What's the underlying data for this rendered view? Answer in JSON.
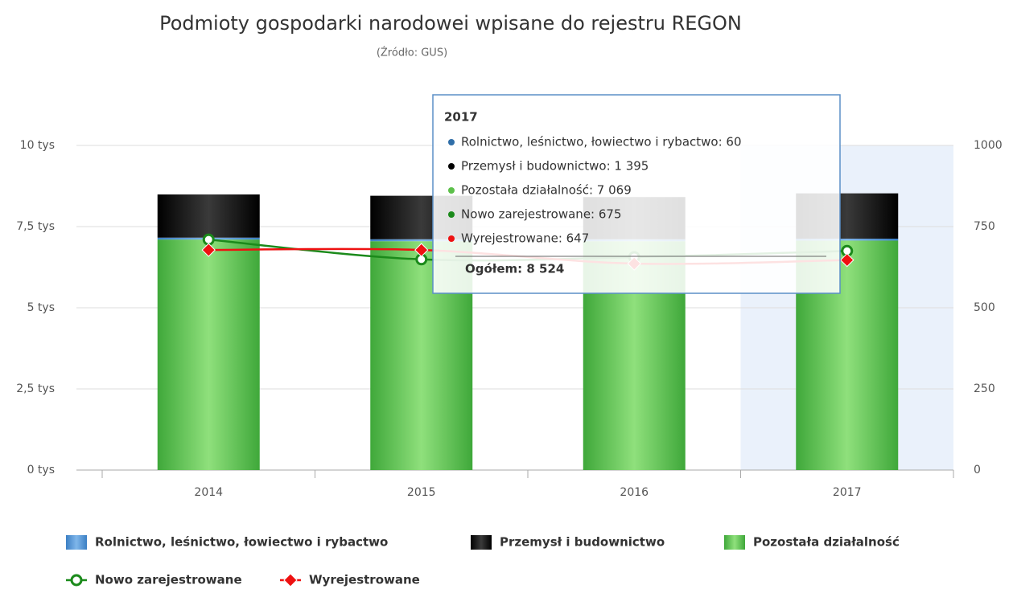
{
  "chart_data": {
    "type": "bar",
    "title": "Podmioty gospodarki narodowei wpisane do rejestru REGON",
    "subtitle": "(Źródło: GUS)",
    "categories": [
      "2014",
      "2015",
      "2016",
      "2017"
    ],
    "series": [
      {
        "name": "Rolnictwo, leśnictwo, łowiectwo i rybactwo",
        "color": "#4a8fd4",
        "type": "bar",
        "values": [
          60,
          60,
          60,
          60
        ]
      },
      {
        "name": "Przemysł i budownictwo",
        "color": "#1a1a1a",
        "type": "bar",
        "values": [
          1330,
          1340,
          1300,
          1395
        ]
      },
      {
        "name": "Pozostała działalność",
        "color": "#5cc04a",
        "type": "bar",
        "values": [
          7100,
          7050,
          7050,
          7069
        ]
      },
      {
        "name": "Nowo zarejestrowane",
        "color": "#1b8a1b",
        "type": "line",
        "axis": "y2",
        "marker": "circle",
        "values": [
          710,
          649,
          656,
          675
        ]
      },
      {
        "name": "Wyrejestrowane",
        "color": "#ee1111",
        "type": "line",
        "axis": "y2",
        "marker": "diamond",
        "values": [
          678,
          678,
          636,
          647
        ]
      }
    ],
    "ylim": [
      0,
      10000
    ],
    "yticks": [
      {
        "value": 0,
        "label": "0 tys"
      },
      {
        "value": 2500,
        "label": "2,5 tys"
      },
      {
        "value": 5000,
        "label": "5 tys"
      },
      {
        "value": 7500,
        "label": "7,5 tys"
      },
      {
        "value": 10000,
        "label": "10 tys"
      }
    ],
    "y2lim": [
      0,
      1000
    ],
    "y2ticks": [
      0,
      250,
      500,
      750,
      1000
    ],
    "y2color": "#ee1111",
    "grid": true,
    "legend": "bottom",
    "highlight": 3,
    "tooltip": {
      "title": "2017",
      "lines": [
        {
          "text": "Rolnictwo, leśnictwo, łowiectwo i rybactwo: 60",
          "color": "#2f6ea8"
        },
        {
          "text": "Przemysł i budownictwo: 1 395",
          "color": "#000000"
        },
        {
          "text": "Pozostała działalność: 7 069",
          "color": "#5cc04a"
        },
        {
          "text": "Nowo zarejestrowane: 675",
          "color": "#1b8a1b"
        },
        {
          "text": "Wyrejestrowane: 647",
          "color": "#ee1111"
        }
      ],
      "total": "Ogółem: 8 524"
    }
  }
}
